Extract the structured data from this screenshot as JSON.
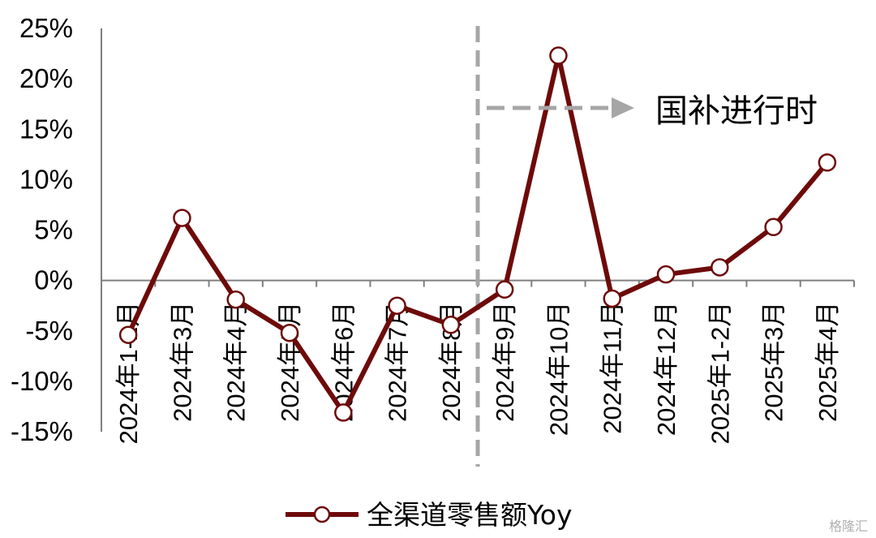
{
  "chart_data": {
    "type": "line",
    "categories": [
      "2024年1-2月",
      "2024年3月",
      "2024年4月",
      "2024年5月",
      "2024年6月",
      "2024年7月",
      "2024年8月",
      "2024年9月",
      "2024年10月",
      "2024年11月",
      "2024年12月",
      "2025年1-2月",
      "2025年3月",
      "2025年4月"
    ],
    "series": [
      {
        "name": "全渠道零售额Yoy",
        "color": "#6e0a0a",
        "values": [
          -5.4,
          6.2,
          -1.9,
          -5.2,
          -13.1,
          -2.5,
          -4.4,
          -0.9,
          22.3,
          -1.8,
          0.6,
          1.3,
          5.3,
          11.7
        ]
      }
    ],
    "yticks": [
      "25%",
      "20%",
      "15%",
      "10%",
      "5%",
      "0%",
      "-5%",
      "-10%",
      "-15%"
    ],
    "ylim": [
      -15,
      25
    ],
    "annotation": {
      "text": "国补进行时",
      "divider_after_category": "2024年8月"
    },
    "legend": {
      "position": "bottom-center"
    },
    "grid": false
  },
  "watermark": "格隆汇"
}
